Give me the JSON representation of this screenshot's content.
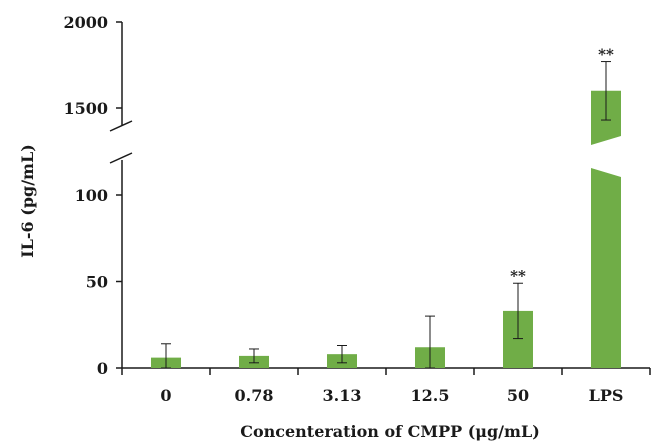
{
  "chart_data": {
    "type": "bar",
    "xlabel": "Concenteration of CMPP (μg/mL)",
    "ylabel": "IL-6 (pg/mL)",
    "categories": [
      "0",
      "0.78",
      "3.13",
      "12.5",
      "50",
      "LPS"
    ],
    "values": [
      6,
      7,
      8,
      12,
      33,
      1600
    ],
    "error": [
      8,
      4,
      5,
      18,
      16,
      170
    ],
    "significance": [
      "",
      "",
      "",
      "",
      "**",
      "**"
    ],
    "y_axis_break": true,
    "ylim_lower": [
      0,
      120
    ],
    "ylim_upper": [
      1400,
      2000
    ],
    "yticks_lower": [
      "0",
      "50",
      "100"
    ],
    "yticks_upper": [
      "1500",
      "2000"
    ],
    "bar_color": "#70ad47"
  }
}
